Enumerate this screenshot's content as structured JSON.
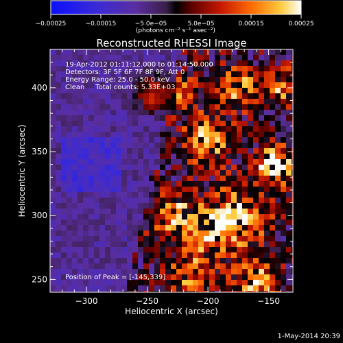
{
  "chart_data": {
    "type": "heatmap",
    "title": "Reconstructed RHESSI Image",
    "xlabel": "Heliocentric X (arcsec)",
    "ylabel": "Heliocentric Y (arcsec)",
    "xlim": [
      -330,
      -130
    ],
    "ylim": [
      240,
      430
    ],
    "x_ticks": [
      -300,
      -250,
      -200,
      -150
    ],
    "x_tick_labels": [
      "−300",
      "−250",
      "−200",
      "−150"
    ],
    "y_ticks": [
      250,
      300,
      350,
      400
    ],
    "y_tick_labels": [
      "250",
      "300",
      "350",
      "400"
    ],
    "colorbar": {
      "range": [
        -0.00025,
        0.00025
      ],
      "ticks": [
        -0.00025,
        -0.00015,
        -5e-05,
        5e-05,
        0.00015,
        0.00025
      ],
      "tick_labels": [
        "−0.00025",
        "−0.00015",
        "−5.0e−05",
        "5.0e−05",
        "0.00015",
        "0.00025"
      ],
      "units": "(photons cm⁻² s⁻¹ asec⁻²)"
    },
    "annotations": {
      "time": "19-Apr-2012 01:11:12.000 to 01:14:50.000",
      "detectors": "Detectors: 3F 5F 6F 7F 8F 9F, Att 0",
      "energy": "Energy Range: 25.0 - 50.0 keV",
      "clean": "Clean     Total counts: 5.33E+03",
      "peak": "Position of Peak = [-145,339]"
    },
    "peak_position": [
      -145,
      339
    ],
    "grid": false
  },
  "footer": {
    "date": "1-May-2014 20:39"
  }
}
